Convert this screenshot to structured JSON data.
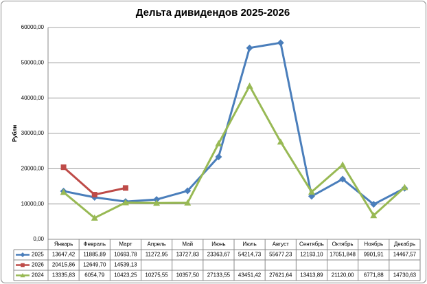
{
  "chart_data": {
    "type": "line",
    "title": "Дельта дивидендов 2025-2026",
    "y_label": "Рубли",
    "categories": [
      "Январь",
      "Февраль",
      "Март",
      "Апрель",
      "Май",
      "Июнь",
      "Июль",
      "Август",
      "Сентябрь",
      "Октябрь",
      "Ноябрь",
      "Декабрь"
    ],
    "series": [
      {
        "name": "2025",
        "color": "#4a7ebb",
        "marker": "diamond",
        "values": [
          13647.42,
          11885.89,
          10693.78,
          11272.95,
          13727.83,
          23363.67,
          54214.73,
          55677.23,
          12193.1,
          17051.848,
          9901.91,
          14467.57
        ],
        "value_labels": [
          "13647,42",
          "11885,89",
          "10693,78",
          "11272,95",
          "13727,83",
          "23363,67",
          "54214,73",
          "55677,23",
          "12193,10",
          "17051,848",
          "9901,91",
          "14467,57"
        ]
      },
      {
        "name": "2026",
        "color": "#be4b48",
        "marker": "square",
        "values": [
          20415.86,
          12649.7,
          14539.13,
          null,
          null,
          null,
          null,
          null,
          null,
          null,
          null,
          null
        ],
        "value_labels": [
          "20415,86",
          "12649,70",
          "14539,13",
          null,
          null,
          null,
          null,
          null,
          null,
          null,
          null,
          null
        ]
      },
      {
        "name": "2024",
        "color": "#98b954",
        "marker": "triangle",
        "values": [
          13335.83,
          6054.79,
          10423.25,
          10275.55,
          10357.5,
          27133.55,
          43451.42,
          27621.64,
          13413.89,
          21120.0,
          6771.88,
          14730.63
        ],
        "value_labels": [
          "13335,83",
          "6054,79",
          "10423,25",
          "10275,55",
          "10357,50",
          "27133,55",
          "43451,42",
          "27621,64",
          "13413,89",
          "21120,00",
          "6771,88",
          "14730,63"
        ]
      }
    ],
    "ylim": [
      0,
      60000
    ],
    "yticks": [
      {
        "value": 0,
        "label": "0,00"
      },
      {
        "value": 10000,
        "label": "10000,00"
      },
      {
        "value": 20000,
        "label": "20000,00"
      },
      {
        "value": 30000,
        "label": "30000,00"
      },
      {
        "value": 40000,
        "label": "40000,00"
      },
      {
        "value": 50000,
        "label": "50000,00"
      },
      {
        "value": 60000,
        "label": "60000,00"
      }
    ],
    "grid": true,
    "legend": "data-table"
  }
}
